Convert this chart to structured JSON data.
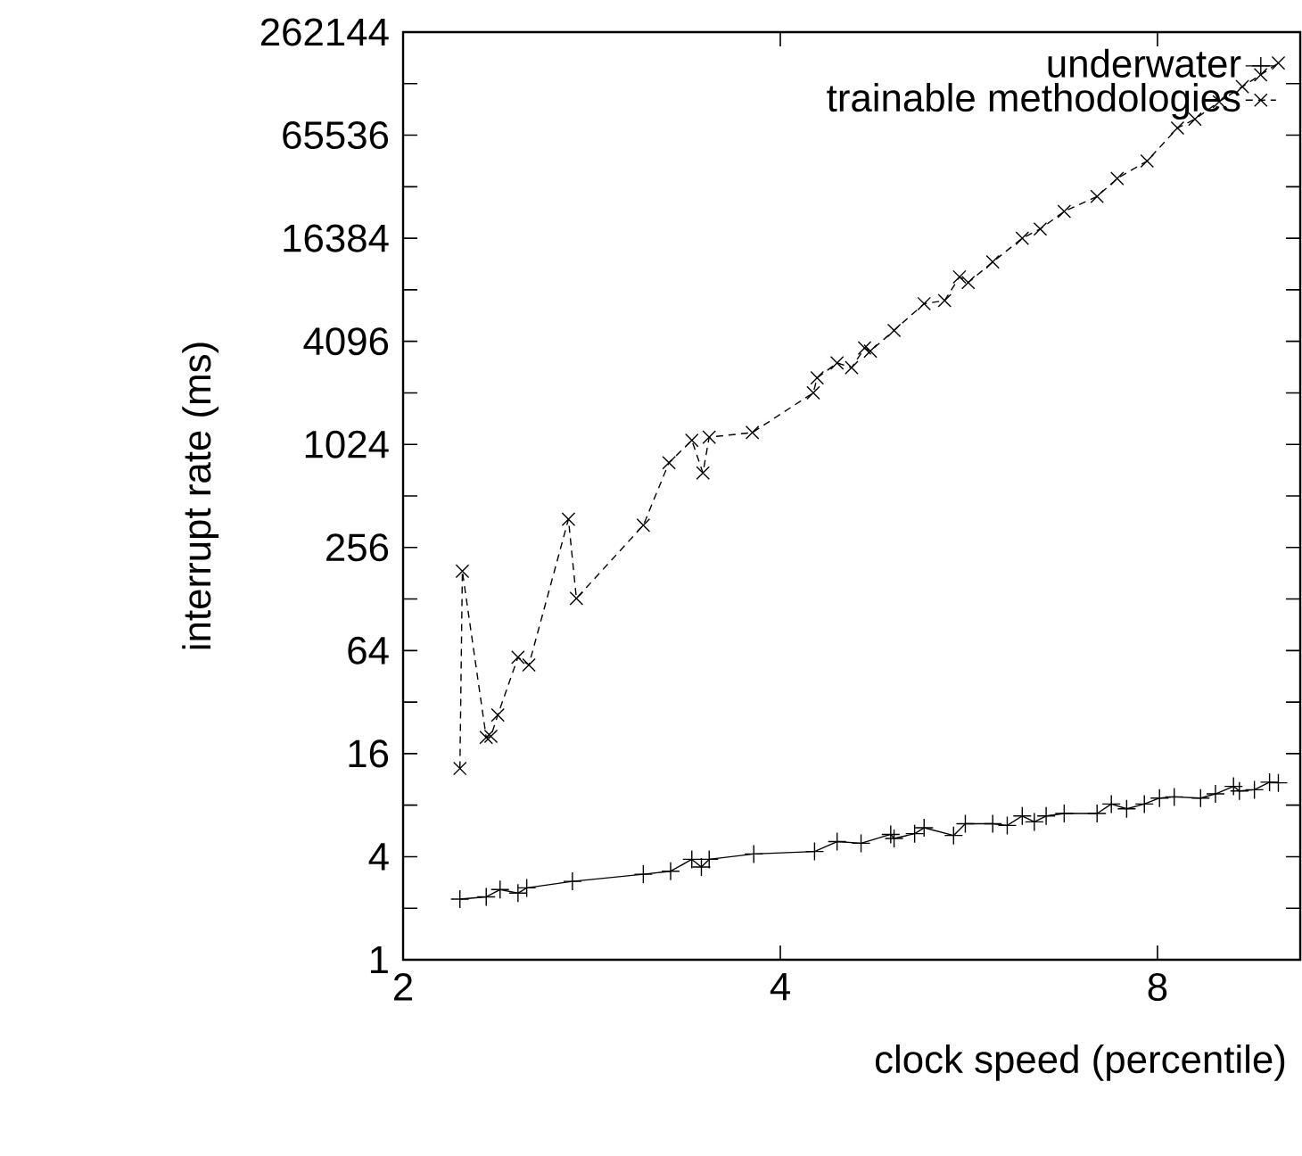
{
  "chart_data": {
    "type": "line",
    "xlabel": "clock speed (percentile)",
    "ylabel": "interrupt rate (ms)",
    "log": "xy",
    "legend": "top right",
    "grid": false,
    "xlim": [
      2,
      10.4
    ],
    "xticks": [
      2,
      4,
      8
    ],
    "ylim": [
      1,
      262144
    ],
    "yticks": [
      1,
      {
        "value": 2,
        "label": null
      },
      4,
      {
        "value": 8,
        "label": null
      },
      16,
      {
        "value": 32,
        "label": null
      },
      64,
      {
        "value": 128,
        "label": null
      },
      256,
      {
        "value": 512,
        "label": null
      },
      1024,
      {
        "value": 2048,
        "label": null
      },
      4096,
      {
        "value": 8192,
        "label": null
      },
      16384,
      {
        "value": 32768,
        "label": null
      },
      65536,
      {
        "value": 131072,
        "label": null
      },
      262144
    ],
    "series": [
      {
        "name": "underwater",
        "color": "#000000",
        "marker": "plus",
        "line_style": "solid",
        "x": [
          2.22,
          2.33,
          2.39,
          2.47,
          2.51,
          2.73,
          3.11,
          3.27,
          3.4,
          3.46,
          3.51,
          3.81,
          4.26,
          4.44,
          4.64,
          4.9,
          4.93,
          5.12,
          5.21,
          5.5,
          5.62,
          5.91,
          6.07,
          6.24,
          6.38,
          6.52,
          6.74,
          7.16,
          7.35,
          7.56,
          7.81,
          8.03,
          8.25,
          8.66,
          8.9,
          9.2,
          9.3,
          9.56,
          9.83,
          9.99
        ],
        "values": [
          2.26,
          2.33,
          2.57,
          2.45,
          2.63,
          2.87,
          3.16,
          3.29,
          3.86,
          3.48,
          3.86,
          4.15,
          4.29,
          4.9,
          4.79,
          5.4,
          5.11,
          5.45,
          5.9,
          5.32,
          6.23,
          6.23,
          6.09,
          6.92,
          6.39,
          6.92,
          7.15,
          7.15,
          8.12,
          7.62,
          8.12,
          8.8,
          8.94,
          8.8,
          9.31,
          10.3,
          9.68,
          9.84,
          10.9,
          10.8
        ]
      },
      {
        "name": "trainable methodologies",
        "color": "#000000",
        "marker": "cross",
        "line_style": "dashed",
        "x": [
          2.22,
          2.23,
          2.33,
          2.35,
          2.38,
          2.47,
          2.52,
          2.71,
          2.75,
          3.11,
          3.26,
          3.4,
          3.47,
          3.51,
          3.8,
          4.25,
          4.28,
          4.44,
          4.56,
          4.67,
          4.72,
          4.93,
          5.21,
          5.41,
          5.56,
          5.65,
          5.91,
          6.24,
          6.45,
          6.74,
          7.16,
          7.43,
          7.85,
          8.3,
          8.57,
          8.96,
          9.35,
          9.67,
          9.99
        ],
        "values": [
          13.1,
          186,
          19.9,
          20.2,
          26.9,
          58.5,
          52.7,
          374,
          129,
          345,
          800,
          1082,
          697,
          1128,
          1201,
          2048,
          2505,
          3062,
          2876,
          3744,
          3590,
          4740,
          6797,
          7083,
          9741,
          9027,
          11911,
          16384,
          18560,
          23500,
          28750,
          36600,
          46300,
          72200,
          81300,
          102800,
          125800,
          147500,
          173000
        ]
      }
    ]
  }
}
